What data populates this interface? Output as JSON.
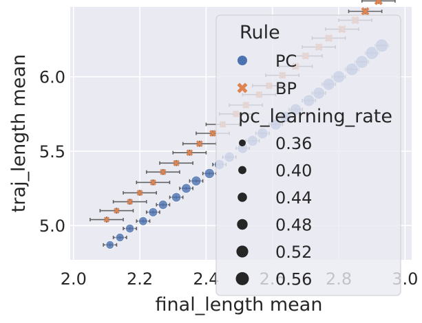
{
  "chart_data": {
    "type": "scatter",
    "xlabel": "final_length mean",
    "ylabel": "traj_length mean",
    "xlim": [
      1.99,
      3.02
    ],
    "ylim": [
      4.77,
      6.47
    ],
    "x_ticks": [
      2.0,
      2.2,
      2.4,
      2.6,
      2.8,
      3.0
    ],
    "x_tick_labels": [
      "2.0",
      "2.2",
      "2.4",
      "2.6",
      "2.8",
      "3.0"
    ],
    "y_ticks": [
      5.0,
      5.5,
      6.0
    ],
    "y_tick_labels": [
      "5.0",
      "5.5",
      "6.0"
    ],
    "grid": true,
    "legend_placement": "right",
    "legend": {
      "hue_title": "Rule",
      "hue_entries": [
        {
          "label": "PC",
          "marker": "circle",
          "color": "#4c72b0"
        },
        {
          "label": "BP",
          "marker": "x",
          "color": "#dd8452"
        }
      ],
      "size_title": "pc_learning_rate",
      "size_entries": [
        "0.36",
        "0.40",
        "0.44",
        "0.48",
        "0.52",
        "0.56"
      ]
    },
    "series": [
      {
        "name": "PC",
        "marker": "circle",
        "color": "#4c72b0",
        "x": [
          2.11,
          2.14,
          2.17,
          2.21,
          2.24,
          2.27,
          2.31,
          2.34,
          2.37,
          2.41,
          2.44,
          2.47,
          2.51,
          2.54,
          2.57,
          2.61,
          2.64,
          2.67,
          2.71,
          2.74,
          2.77,
          2.8,
          2.84,
          2.87,
          2.9,
          2.93
        ],
        "y": [
          4.87,
          4.92,
          4.98,
          5.03,
          5.09,
          5.14,
          5.19,
          5.25,
          5.3,
          5.35,
          5.41,
          5.46,
          5.52,
          5.57,
          5.62,
          5.68,
          5.73,
          5.78,
          5.84,
          5.89,
          5.95,
          6.0,
          6.05,
          6.1,
          6.16,
          6.21
        ],
        "xerr": [
          0.02,
          0.02,
          0.02,
          0.02,
          0.02,
          0.02,
          0.02,
          0.02,
          0.02,
          0.02,
          0.02,
          0.02,
          0.02,
          0.02,
          0.02,
          0.02,
          0.02,
          0.02,
          0.02,
          0.02,
          0.02,
          0.02,
          0.02,
          0.02,
          0.02,
          0.02
        ],
        "yerr": [
          0.01,
          0.01,
          0.01,
          0.01,
          0.01,
          0.01,
          0.01,
          0.01,
          0.01,
          0.01,
          0.01,
          0.01,
          0.01,
          0.01,
          0.01,
          0.01,
          0.01,
          0.01,
          0.01,
          0.01,
          0.01,
          0.01,
          0.01,
          0.01,
          0.01,
          0.01
        ]
      },
      {
        "name": "BP",
        "marker": "x",
        "color": "#dd8452",
        "x": [
          2.1,
          2.13,
          2.17,
          2.2,
          2.24,
          2.27,
          2.31,
          2.35,
          2.38,
          2.42,
          2.45,
          2.49,
          2.52,
          2.56,
          2.59,
          2.63,
          2.67,
          2.7,
          2.74,
          2.77,
          2.81,
          2.85,
          2.88,
          2.92
        ],
        "y": [
          5.04,
          5.1,
          5.16,
          5.22,
          5.29,
          5.36,
          5.42,
          5.49,
          5.55,
          5.62,
          5.68,
          5.75,
          5.81,
          5.88,
          5.94,
          6.01,
          6.07,
          6.14,
          6.2,
          6.26,
          6.32,
          6.38,
          6.44,
          6.51
        ],
        "xerr": [
          0.05,
          0.05,
          0.05,
          0.05,
          0.05,
          0.05,
          0.05,
          0.05,
          0.05,
          0.05,
          0.05,
          0.05,
          0.05,
          0.05,
          0.05,
          0.05,
          0.05,
          0.05,
          0.05,
          0.05,
          0.05,
          0.05,
          0.05,
          0.05
        ],
        "yerr": [
          0.02,
          0.02,
          0.02,
          0.02,
          0.02,
          0.02,
          0.02,
          0.02,
          0.02,
          0.02,
          0.02,
          0.02,
          0.02,
          0.02,
          0.02,
          0.02,
          0.02,
          0.02,
          0.02,
          0.02,
          0.02,
          0.02,
          0.02,
          0.02
        ]
      }
    ]
  }
}
